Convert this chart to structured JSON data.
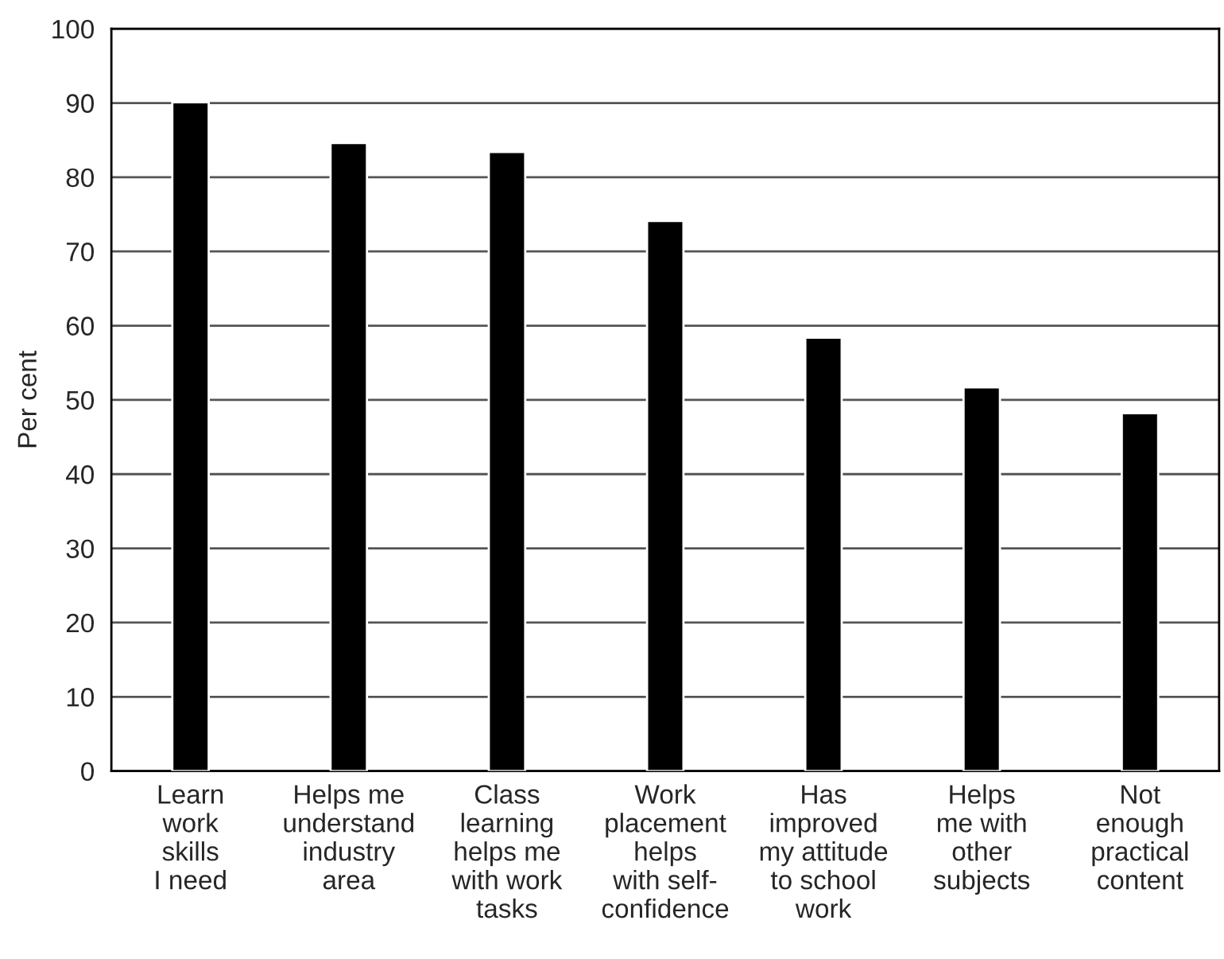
{
  "chart_data": {
    "type": "bar",
    "ylabel": "Per cent",
    "categories": [
      "Learn\nwork\nskills\nI need",
      "Helps me\nunderstand\nindustry\narea",
      "Class\nlearning\nhelps me\nwith work\ntasks",
      "Work\nplacement\nhelps\nwith self-\nconfidence",
      "Has\nimproved\nmy attitude\nto school\nwork",
      "Helps\nme with\nother\nsubjects",
      "Not\nenough\npractical\ncontent"
    ],
    "values": [
      90.1,
      84.6,
      83.4,
      74.1,
      58.4,
      51.7,
      48.2
    ],
    "color": "#000000",
    "ylim": [
      0,
      100
    ],
    "yticks": [
      0,
      10,
      20,
      30,
      40,
      50,
      60,
      70,
      80,
      90,
      100
    ],
    "grid": "y"
  }
}
